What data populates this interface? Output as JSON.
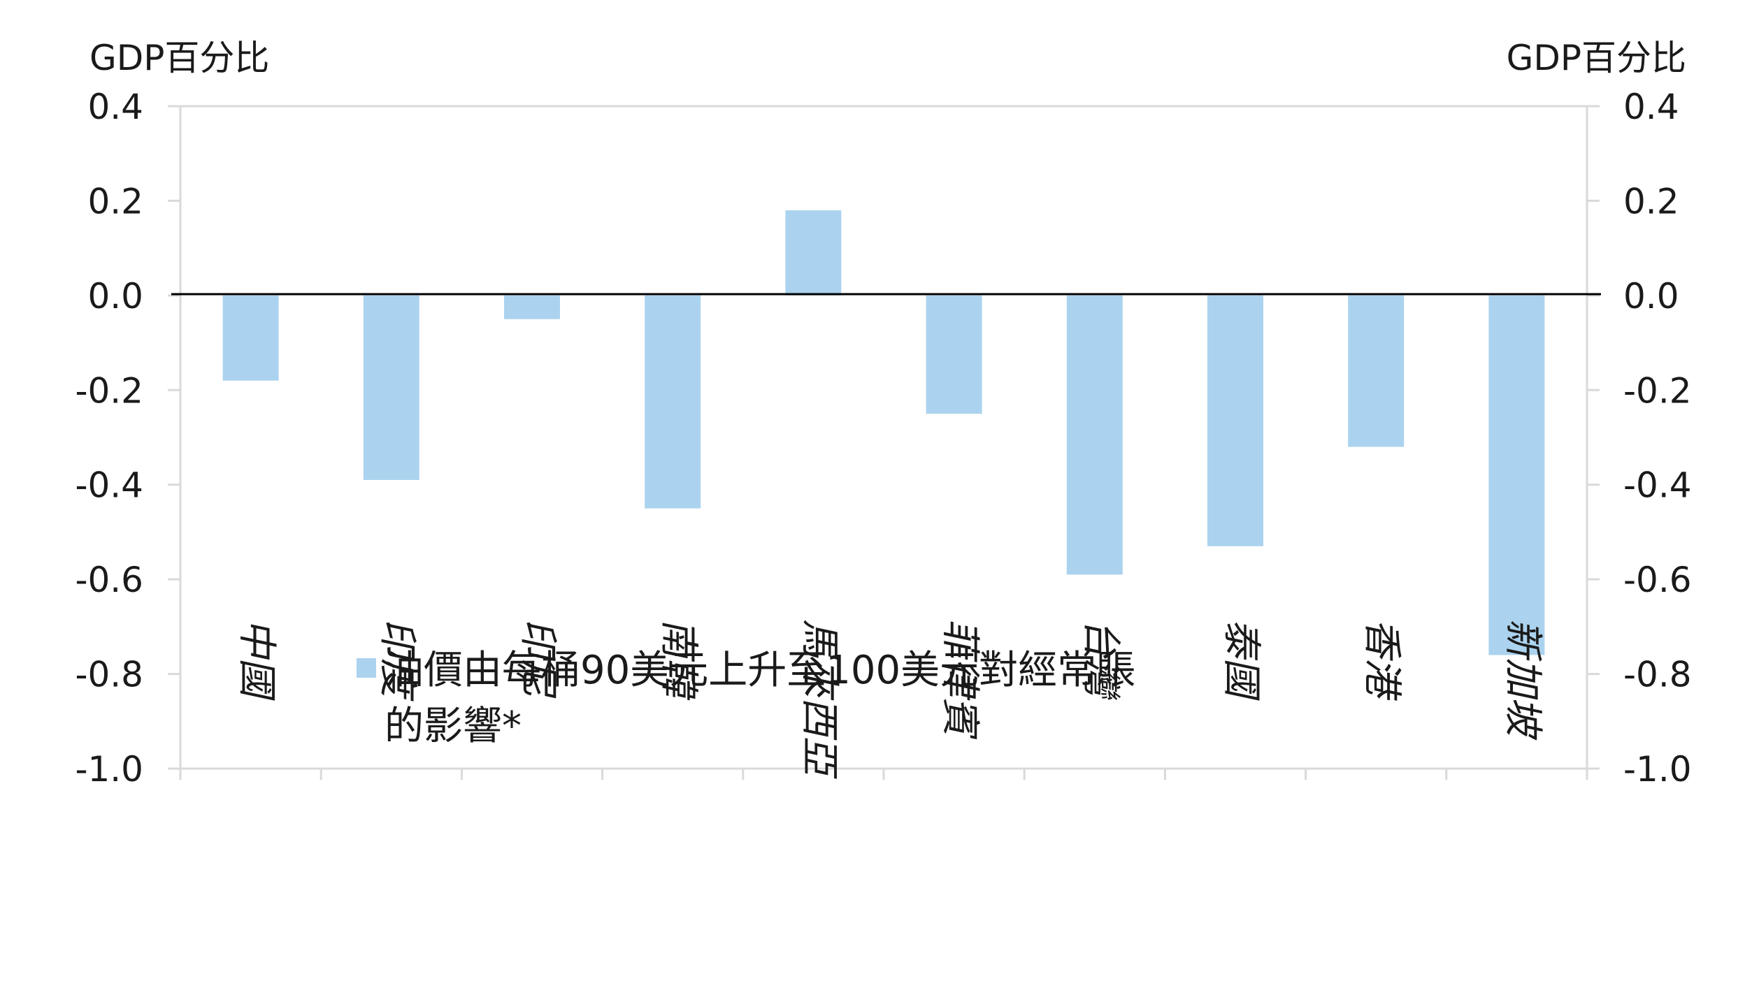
{
  "chart_data": {
    "type": "bar",
    "left_axis_label": "GDP百分比",
    "right_axis_label": "GDP百分比",
    "ylim": [
      -1.0,
      0.4
    ],
    "y_ticks": [
      "0.4",
      "0.2",
      "0.0",
      "-0.2",
      "-0.4",
      "-0.6",
      "-0.8",
      "-1.0"
    ],
    "y_tick_values": [
      0.4,
      0.2,
      0.0,
      -0.2,
      -0.4,
      -0.6,
      -0.8,
      -1.0
    ],
    "categories": [
      "中國",
      "印度",
      "印尼",
      "南韓",
      "馬來西亞",
      "菲律賓",
      "台灣",
      "泰國",
      "香港",
      "新加坡"
    ],
    "series": [
      {
        "name": "油價由每桶90美元上升至100美元對經常賬的影響*",
        "color": "#abd3ef",
        "values": [
          -0.18,
          -0.39,
          -0.05,
          -0.45,
          0.18,
          -0.25,
          -0.59,
          -0.53,
          -0.32,
          -0.76
        ]
      }
    ],
    "legend": {
      "line1": "油價由每桶90美元上升至100美元對經常賬",
      "line2": "的影響*",
      "placement": "bottom-left"
    },
    "grid": false
  }
}
